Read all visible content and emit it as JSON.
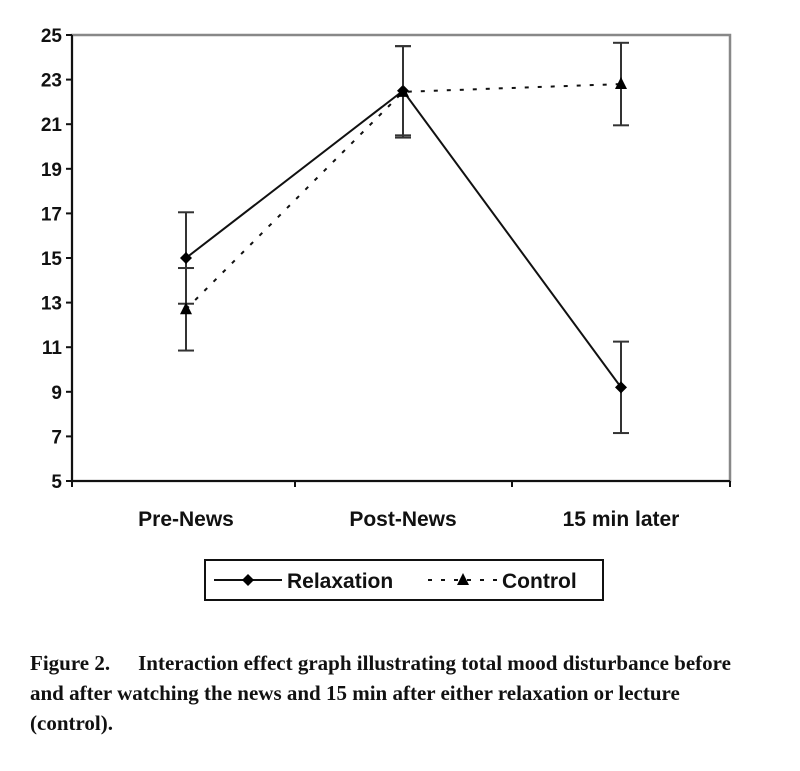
{
  "chart_data": {
    "type": "line",
    "categories": [
      "Pre-News",
      "Post-News",
      "15 min later"
    ],
    "ylim": [
      5,
      25
    ],
    "yticks": [
      5,
      7,
      9,
      11,
      13,
      15,
      17,
      19,
      21,
      23,
      25
    ],
    "grid": false,
    "legend": "bottom",
    "series": [
      {
        "name": "Relaxation",
        "values": [
          15.0,
          22.5,
          9.2
        ],
        "error": [
          2.05,
          2.0,
          2.05
        ],
        "marker": "diamond",
        "line": "solid"
      },
      {
        "name": "Control",
        "values": [
          12.7,
          22.45,
          22.8
        ],
        "error": [
          1.85,
          2.05,
          1.85
        ],
        "marker": "triangle",
        "line": "dashed"
      }
    ]
  },
  "caption": {
    "label": "Figure 2.",
    "text": "Interaction effect graph illustrating total mood disturbance before and after watching the news and 15 min after either relaxation or lecture (control)."
  }
}
